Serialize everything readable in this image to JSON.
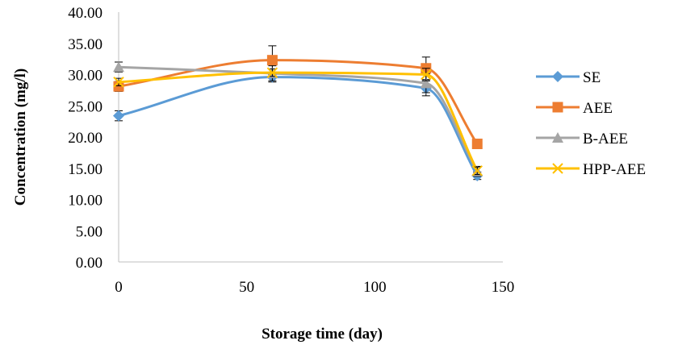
{
  "chart_data": {
    "type": "line",
    "title": "",
    "xlabel": "Storage time (day)",
    "ylabel": "Concentration (mg/l)",
    "xlim": [
      0,
      150
    ],
    "ylim": [
      0,
      40
    ],
    "x_ticks": [
      "0",
      "50",
      "100",
      "150"
    ],
    "y_ticks": [
      "0.00",
      "5.00",
      "10.00",
      "15.00",
      "20.00",
      "25.00",
      "30.00",
      "35.00",
      "40.00"
    ],
    "x": [
      0,
      60,
      120,
      140
    ],
    "grid": false,
    "legend_position": "right",
    "series": [
      {
        "name": "SE",
        "values": [
          23.4,
          29.6,
          27.8,
          13.8
        ],
        "errors": [
          0.8,
          0.8,
          1.2,
          0.6
        ],
        "color": "#5B9BD5",
        "marker": "diamond"
      },
      {
        "name": "AEE",
        "values": [
          28.1,
          32.3,
          31.0,
          18.9
        ],
        "errors": [
          0.8,
          2.3,
          1.8,
          0.5
        ],
        "color": "#ED7D31",
        "marker": "square"
      },
      {
        "name": "B-AEE",
        "values": [
          31.2,
          30.2,
          28.6,
          14.5
        ],
        "errors": [
          0.8,
          1.2,
          1.5,
          0.8
        ],
        "color": "#A5A5A5",
        "marker": "triangle"
      },
      {
        "name": "HPP-AEE",
        "values": [
          28.8,
          30.3,
          30.0,
          14.6
        ],
        "errors": [
          0.6,
          0.6,
          1.0,
          0.6
        ],
        "color": "#FFC000",
        "marker": "x"
      }
    ]
  }
}
